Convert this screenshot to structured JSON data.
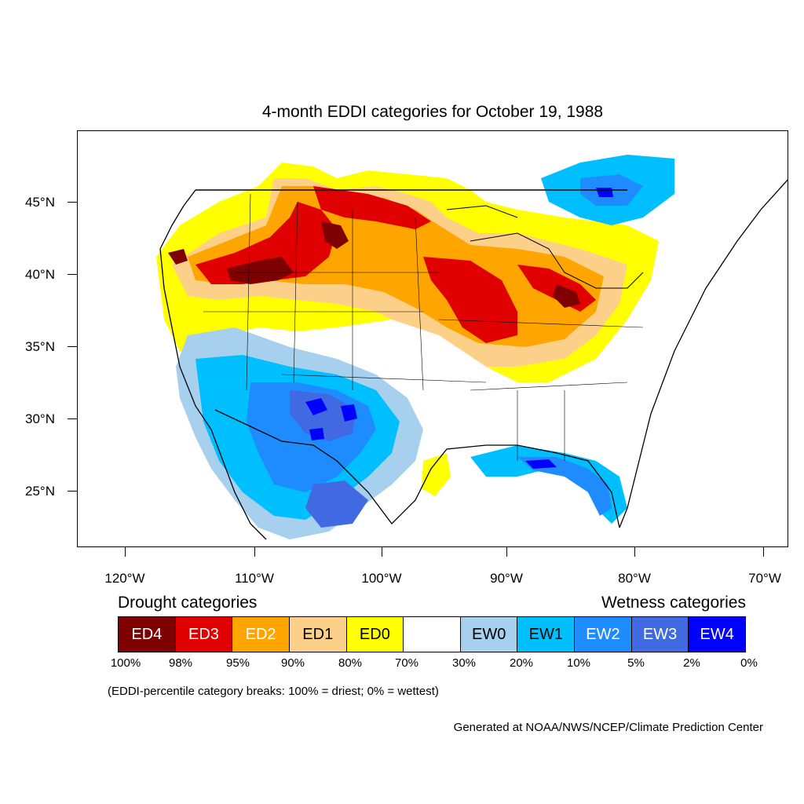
{
  "title": "4-month EDDI categories for October 19, 1988",
  "lat_labels": [
    "45°N",
    "40°N",
    "35°N",
    "30°N",
    "25°N"
  ],
  "lon_labels": [
    "120°W",
    "110°W",
    "100°W",
    "90°W",
    "80°W",
    "70°W"
  ],
  "legend": {
    "drought_heading": "Drought categories",
    "wetness_heading": "Wetness categories",
    "categories": [
      {
        "label": "ED4",
        "color": "#7f0000",
        "text_color": "#ffffff"
      },
      {
        "label": "ED3",
        "color": "#e00000",
        "text_color": "#ffffff"
      },
      {
        "label": "ED2",
        "color": "#ffa500",
        "text_color": "#ffffff"
      },
      {
        "label": "ED1",
        "color": "#fdd08a",
        "text_color": "#000000"
      },
      {
        "label": "ED0",
        "color": "#ffff00",
        "text_color": "#000000"
      },
      {
        "label": "",
        "color": "#ffffff",
        "text_color": "#000000"
      },
      {
        "label": "EW0",
        "color": "#a6d0ee",
        "text_color": "#000000"
      },
      {
        "label": "EW1",
        "color": "#00bfff",
        "text_color": "#000000"
      },
      {
        "label": "EW2",
        "color": "#1e8cff",
        "text_color": "#ffffff"
      },
      {
        "label": "EW3",
        "color": "#4169e1",
        "text_color": "#ffffff"
      },
      {
        "label": "EW4",
        "color": "#0000ff",
        "text_color": "#ffffff"
      }
    ],
    "breaks": [
      "100%",
      "98%",
      "95%",
      "90%",
      "80%",
      "70%",
      "30%",
      "20%",
      "10%",
      "5%",
      "2%",
      "0%"
    ]
  },
  "note": "(EDDI-percentile category breaks: 100% = driest; 0% = wettest)",
  "credit": "Generated at NOAA/NWS/NCEP/Climate Prediction Center"
}
